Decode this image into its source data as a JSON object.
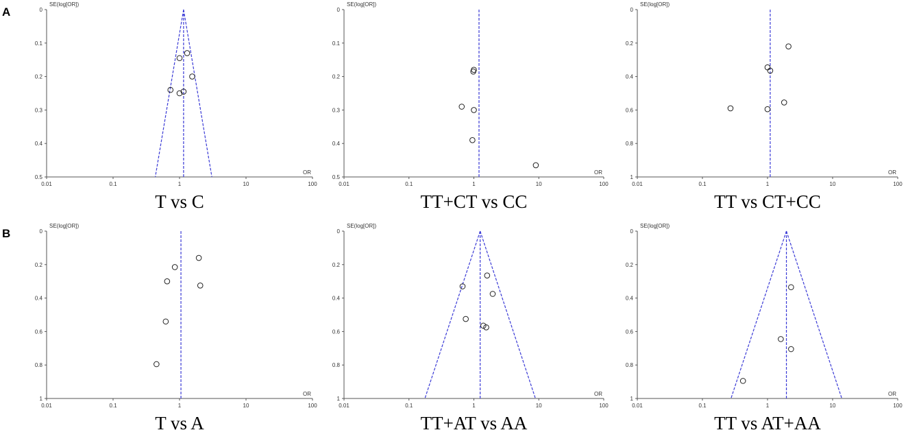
{
  "panel_labels": {
    "A": "A",
    "B": "B"
  },
  "chart_data": [
    {
      "type": "scatter",
      "title": "T vs C",
      "xlabel": "OR",
      "ylabel": "SE(log[OR])",
      "x_scale": "log",
      "xlim": [
        0.01,
        100
      ],
      "ylim": [
        0,
        0.5
      ],
      "xticks": [
        "0.01",
        "0.1",
        "1",
        "10",
        "100"
      ],
      "yticks": [
        "0",
        "0.1",
        "0.2",
        "0.3",
        "0.4",
        "0.5"
      ],
      "pooled_or": 1.15,
      "funnel": true,
      "points": [
        [
          1.0,
          0.145
        ],
        [
          1.3,
          0.13
        ],
        [
          1.55,
          0.2
        ],
        [
          0.73,
          0.24
        ],
        [
          1.0,
          0.25
        ],
        [
          1.15,
          0.245
        ]
      ]
    },
    {
      "type": "scatter",
      "title": "TT+CT vs CC",
      "xlabel": "OR",
      "ylabel": "SE(log[OR])",
      "x_scale": "log",
      "xlim": [
        0.01,
        100
      ],
      "ylim": [
        0,
        0.5
      ],
      "xticks": [
        "0.01",
        "0.1",
        "1",
        "10",
        "100"
      ],
      "yticks": [
        "0",
        "0.1",
        "0.2",
        "0.3",
        "0.4",
        "0.5"
      ],
      "pooled_or": 1.2,
      "funnel": false,
      "points": [
        [
          1.0,
          0.18
        ],
        [
          0.98,
          0.185
        ],
        [
          0.65,
          0.29
        ],
        [
          1.0,
          0.3
        ],
        [
          0.95,
          0.39
        ],
        [
          9.0,
          0.465
        ]
      ]
    },
    {
      "type": "scatter",
      "title": "TT vs CT+CC",
      "xlabel": "OR",
      "ylabel": "SE(log[OR])",
      "x_scale": "log",
      "xlim": [
        0.01,
        100
      ],
      "ylim": [
        0,
        1
      ],
      "xticks": [
        "0.01",
        "0.1",
        "1",
        "10",
        "100"
      ],
      "yticks": [
        "0",
        "0.2",
        "0.4",
        "0.6",
        "0.8",
        "1"
      ],
      "pooled_or": 1.1,
      "funnel": false,
      "points": [
        [
          2.1,
          0.22
        ],
        [
          1.0,
          0.345
        ],
        [
          1.1,
          0.365
        ],
        [
          1.8,
          0.555
        ],
        [
          0.27,
          0.59
        ],
        [
          1.0,
          0.595
        ]
      ]
    },
    {
      "type": "scatter",
      "title": "T vs A",
      "xlabel": "OR",
      "ylabel": "SE(log[OR])",
      "x_scale": "log",
      "xlim": [
        0.01,
        100
      ],
      "ylim": [
        0,
        1
      ],
      "xticks": [
        "0.01",
        "0.1",
        "1",
        "10",
        "100"
      ],
      "yticks": [
        "0",
        "0.2",
        "0.4",
        "0.6",
        "0.8",
        "1"
      ],
      "pooled_or": 1.05,
      "funnel": false,
      "points": [
        [
          1.95,
          0.16
        ],
        [
          0.85,
          0.215
        ],
        [
          0.65,
          0.3
        ],
        [
          2.05,
          0.325
        ],
        [
          0.62,
          0.54
        ],
        [
          0.45,
          0.795
        ]
      ]
    },
    {
      "type": "scatter",
      "title": "TT+AT vs AA",
      "xlabel": "OR",
      "ylabel": "SE(log[OR])",
      "x_scale": "log",
      "xlim": [
        0.01,
        100
      ],
      "ylim": [
        0,
        1
      ],
      "xticks": [
        "0.01",
        "0.1",
        "1",
        "10",
        "100"
      ],
      "yticks": [
        "0",
        "0.2",
        "0.4",
        "0.6",
        "0.8",
        "1"
      ],
      "pooled_or": 1.25,
      "funnel": true,
      "points": [
        [
          1.6,
          0.265
        ],
        [
          0.67,
          0.33
        ],
        [
          1.95,
          0.375
        ],
        [
          0.75,
          0.525
        ],
        [
          1.4,
          0.565
        ],
        [
          1.55,
          0.575
        ]
      ]
    },
    {
      "type": "scatter",
      "title": "TT vs AT+AA",
      "xlabel": "OR",
      "ylabel": "SE(log[OR])",
      "x_scale": "log",
      "xlim": [
        0.01,
        100
      ],
      "ylim": [
        0,
        1
      ],
      "xticks": [
        "0.01",
        "0.1",
        "1",
        "10",
        "100"
      ],
      "yticks": [
        "0",
        "0.2",
        "0.4",
        "0.6",
        "0.8",
        "1"
      ],
      "pooled_or": 1.95,
      "funnel": true,
      "points": [
        [
          2.3,
          0.335
        ],
        [
          1.6,
          0.645
        ],
        [
          2.3,
          0.705
        ],
        [
          0.42,
          0.895
        ]
      ]
    }
  ]
}
